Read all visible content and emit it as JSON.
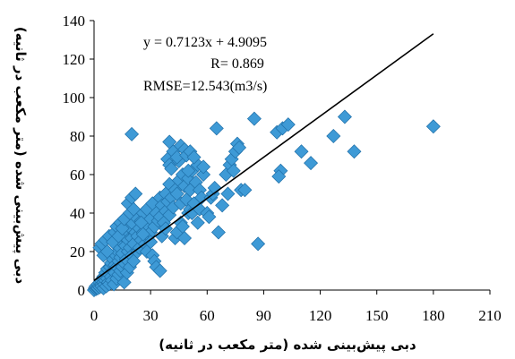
{
  "chart_data": {
    "type": "scatter",
    "xlabel": "دبی پیش‌بینی شده (متر مکعب در ثانیه)",
    "ylabel": "دبی پیش‌بینی شده (متر مکعب در ثانیه)",
    "xlim": [
      0,
      210
    ],
    "ylim": [
      0,
      140
    ],
    "xticks": [
      0,
      30,
      60,
      90,
      120,
      150,
      180,
      210
    ],
    "yticks": [
      0,
      20,
      40,
      60,
      80,
      100,
      120,
      140
    ],
    "grid": false,
    "annotations": [
      "y = 0.7123x + 4.9095",
      "R= 0.869",
      "RMSE=12.543(m3/s)"
    ],
    "marker_color": "#3e9ad6",
    "marker_edge_color": "#1f6fa8",
    "trendline": {
      "slope": 0.7123,
      "intercept": 4.9095,
      "x_range": [
        0,
        180
      ]
    },
    "points": [
      [
        0,
        0
      ],
      [
        0.5,
        1
      ],
      [
        1,
        0.5
      ],
      [
        1,
        2
      ],
      [
        1.5,
        1
      ],
      [
        2,
        3
      ],
      [
        2,
        1
      ],
      [
        2.5,
        2
      ],
      [
        3,
        4
      ],
      [
        3,
        1.5
      ],
      [
        3.5,
        5
      ],
      [
        4,
        3
      ],
      [
        4,
        2
      ],
      [
        4.5,
        6
      ],
      [
        5,
        4
      ],
      [
        5,
        7
      ],
      [
        5,
        1
      ],
      [
        5.5,
        3
      ],
      [
        6,
        5
      ],
      [
        6,
        9
      ],
      [
        6.5,
        2
      ],
      [
        7,
        6
      ],
      [
        7,
        11
      ],
      [
        7.5,
        4
      ],
      [
        8,
        8
      ],
      [
        8,
        3
      ],
      [
        8.5,
        12
      ],
      [
        9,
        7
      ],
      [
        9,
        14
      ],
      [
        9.5,
        5
      ],
      [
        10,
        10
      ],
      [
        10,
        16
      ],
      [
        10.5,
        3
      ],
      [
        11,
        9
      ],
      [
        11,
        13
      ],
      [
        11.5,
        18
      ],
      [
        12,
        6
      ],
      [
        12,
        12
      ],
      [
        12.5,
        20
      ],
      [
        13,
        8
      ],
      [
        13,
        15
      ],
      [
        13.5,
        22
      ],
      [
        14,
        10
      ],
      [
        14,
        17
      ],
      [
        14.5,
        25
      ],
      [
        15,
        12
      ],
      [
        15,
        19
      ],
      [
        15.5,
        28
      ],
      [
        16,
        4
      ],
      [
        16,
        14
      ],
      [
        16.5,
        23
      ],
      [
        17,
        16
      ],
      [
        17,
        30
      ],
      [
        17.5,
        9
      ],
      [
        18,
        20
      ],
      [
        18,
        26
      ],
      [
        18.5,
        33
      ],
      [
        19,
        12
      ],
      [
        19,
        22
      ],
      [
        20,
        18
      ],
      [
        20,
        35
      ],
      [
        20,
        27
      ],
      [
        21,
        24
      ],
      [
        21,
        15
      ],
      [
        22,
        30
      ],
      [
        22,
        38
      ],
      [
        23,
        20
      ],
      [
        23,
        28
      ],
      [
        24,
        32
      ],
      [
        24,
        22
      ],
      [
        25,
        36
      ],
      [
        25,
        26
      ],
      [
        26,
        40
      ],
      [
        26,
        30
      ],
      [
        27,
        24
      ],
      [
        28,
        34
      ],
      [
        28,
        42
      ],
      [
        29,
        28
      ],
      [
        30,
        37
      ],
      [
        30,
        30
      ],
      [
        31,
        45
      ],
      [
        32,
        33
      ],
      [
        33,
        40
      ],
      [
        34,
        36
      ],
      [
        35,
        48
      ],
      [
        35,
        38
      ],
      [
        36,
        44
      ],
      [
        37,
        35
      ],
      [
        38,
        50
      ],
      [
        38,
        41
      ],
      [
        39,
        46
      ],
      [
        40,
        39
      ],
      [
        40,
        55
      ],
      [
        41,
        48
      ],
      [
        42,
        43
      ],
      [
        43,
        52
      ],
      [
        44,
        50
      ],
      [
        45,
        57
      ],
      [
        46,
        45
      ],
      [
        47,
        60
      ],
      [
        48,
        54
      ],
      [
        49,
        47
      ],
      [
        50,
        58
      ],
      [
        51,
        52
      ],
      [
        52,
        62
      ],
      [
        54,
        56
      ],
      [
        55,
        65
      ],
      [
        56,
        52
      ],
      [
        58,
        60
      ],
      [
        3,
        22
      ],
      [
        4,
        24
      ],
      [
        5,
        18
      ],
      [
        6,
        26
      ],
      [
        7,
        20
      ],
      [
        8,
        28
      ],
      [
        10,
        25
      ],
      [
        11,
        30
      ],
      [
        12,
        33
      ],
      [
        13,
        28
      ],
      [
        14,
        35
      ],
      [
        15,
        32
      ],
      [
        16,
        37
      ],
      [
        18,
        45
      ],
      [
        19,
        40
      ],
      [
        20,
        48
      ],
      [
        21,
        42
      ],
      [
        22,
        50
      ],
      [
        20,
        81
      ],
      [
        25,
        35
      ],
      [
        26,
        29
      ],
      [
        28,
        20
      ],
      [
        30,
        25
      ],
      [
        31,
        18
      ],
      [
        32,
        15
      ],
      [
        33,
        12
      ],
      [
        35,
        10
      ],
      [
        36,
        28
      ],
      [
        38,
        32
      ],
      [
        39,
        68
      ],
      [
        40,
        65
      ],
      [
        41,
        63
      ],
      [
        43,
        27
      ],
      [
        44,
        30
      ],
      [
        45,
        67
      ],
      [
        46,
        35
      ],
      [
        47,
        33
      ],
      [
        48,
        27
      ],
      [
        50,
        40
      ],
      [
        51,
        42
      ],
      [
        52,
        40
      ],
      [
        53,
        45
      ],
      [
        55,
        35
      ],
      [
        56,
        42
      ],
      [
        57,
        48
      ],
      [
        58,
        64
      ],
      [
        60,
        40
      ],
      [
        61,
        38
      ],
      [
        62,
        48
      ],
      [
        63,
        50
      ],
      [
        64,
        53
      ],
      [
        65,
        84
      ],
      [
        66,
        30
      ],
      [
        68,
        44
      ],
      [
        70,
        60
      ],
      [
        71,
        50
      ],
      [
        72,
        65
      ],
      [
        73,
        68
      ],
      [
        74,
        62
      ],
      [
        75,
        72
      ],
      [
        76,
        76
      ],
      [
        77,
        74
      ],
      [
        78,
        52
      ],
      [
        40,
        77
      ],
      [
        42,
        72
      ],
      [
        44,
        69
      ],
      [
        46,
        75
      ],
      [
        48,
        73
      ],
      [
        49,
        70
      ],
      [
        50,
        62
      ],
      [
        51,
        72
      ],
      [
        53,
        69
      ],
      [
        80,
        52
      ],
      [
        85,
        89
      ],
      [
        87,
        24
      ],
      [
        97,
        82
      ],
      [
        99,
        62
      ],
      [
        100,
        84
      ],
      [
        103,
        86
      ],
      [
        98,
        59
      ],
      [
        110,
        72
      ],
      [
        115,
        66
      ],
      [
        127,
        80
      ],
      [
        133,
        90
      ],
      [
        138,
        72
      ],
      [
        180,
        85
      ]
    ]
  }
}
